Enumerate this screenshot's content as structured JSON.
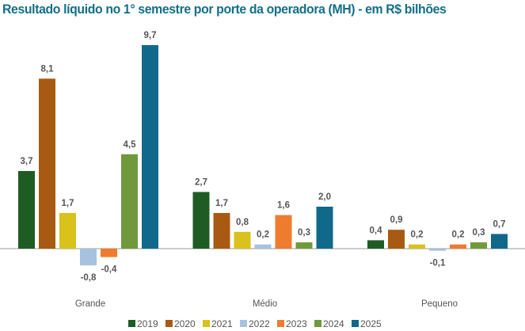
{
  "chart_data": {
    "type": "bar",
    "title": "Resultado líquido no 1° semestre por porte da operadora (MH) - em R$ bilhões",
    "categories": [
      "Grande",
      "Médio",
      "Pequeno"
    ],
    "series": [
      {
        "name": "2019",
        "color": "#1f5c24",
        "values": [
          3.7,
          2.7,
          0.4
        ]
      },
      {
        "name": "2020",
        "color": "#a85a12",
        "values": [
          8.1,
          1.7,
          0.9
        ]
      },
      {
        "name": "2021",
        "color": "#d9c21c",
        "values": [
          1.7,
          0.8,
          0.2
        ]
      },
      {
        "name": "2022",
        "color": "#a6c2de",
        "values": [
          -0.8,
          0.2,
          -0.1
        ]
      },
      {
        "name": "2023",
        "color": "#ef7b2e",
        "values": [
          -0.4,
          1.6,
          0.2
        ]
      },
      {
        "name": "2024",
        "color": "#70993c",
        "values": [
          4.5,
          0.3,
          0.3
        ]
      },
      {
        "name": "2025",
        "color": "#10698a",
        "values": [
          9.7,
          2.0,
          0.7
        ]
      }
    ],
    "xlabel": "",
    "ylabel": "",
    "grid": false,
    "legend": "bottom",
    "data_labels": true
  }
}
